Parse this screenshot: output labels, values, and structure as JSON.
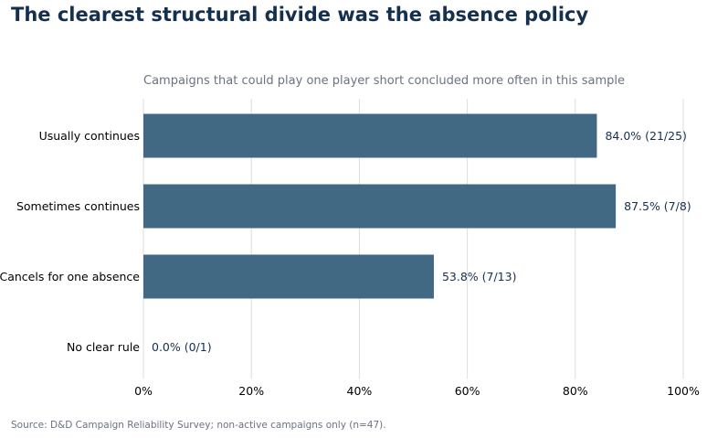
{
  "title": "The clearest structural divide was the absence policy",
  "subtitle": "Campaigns that could play one player short concluded more often in this sample",
  "source": "Source: D&D Campaign Reliability Survey; non-active campaigns only (n=47).",
  "colors": {
    "bar": "#416984",
    "grid": "#dddddd",
    "title": "#15304f",
    "muted": "#6b7280"
  },
  "chart_data": {
    "type": "bar",
    "orientation": "horizontal",
    "title": "The clearest structural divide was the absence policy",
    "subtitle": "Campaigns that could play one player short concluded more often in this sample",
    "xlabel": "",
    "ylabel": "",
    "xlim": [
      0,
      100
    ],
    "grid": true,
    "categories": [
      "Usually continues",
      "Sometimes continues",
      "Cancels for one absence",
      "No clear rule"
    ],
    "values": [
      84.0,
      87.5,
      53.8,
      0.0
    ],
    "data_labels": [
      "84.0%  (21/25)",
      "87.5%  (7/8)",
      "53.8%  (7/13)",
      "0.0%  (0/1)"
    ],
    "x_ticks": [
      "0%",
      "20%",
      "40%",
      "60%",
      "80%",
      "100%"
    ]
  }
}
